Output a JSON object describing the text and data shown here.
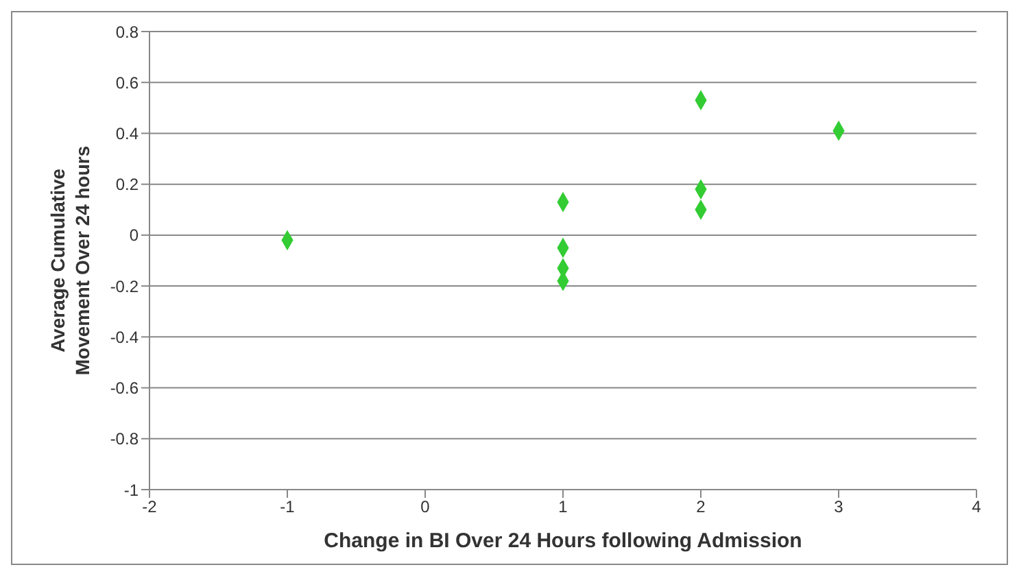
{
  "chart_data": {
    "type": "scatter",
    "xlabel": "Change in BI Over 24 Hours following Admission",
    "ylabel": "Average Cumulative Movement Over 24 hours",
    "x": [
      -1,
      1,
      1,
      1,
      1,
      2,
      2,
      2,
      3
    ],
    "series": [
      {
        "color": "#33cc33",
        "values": [
          -0.02,
          0.13,
          -0.05,
          -0.13,
          -0.18,
          0.53,
          0.18,
          0.1,
          0.41
        ]
      }
    ],
    "xlim": [
      -2,
      4
    ],
    "xticks": [
      -2,
      -1,
      0,
      1,
      2,
      3,
      4
    ],
    "ylim": [
      -1,
      0.8
    ],
    "yticks": [
      -1,
      -0.8,
      -0.6,
      -0.4,
      -0.2,
      0,
      0.2,
      0.4,
      0.6,
      0.8
    ],
    "grid": "y",
    "marker": "diamond",
    "legend": false
  }
}
